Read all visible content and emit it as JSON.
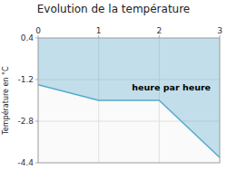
{
  "chart_data": {
    "type": "line",
    "title": "Evolution de la température",
    "y_label": "Température en °C",
    "x": [
      0,
      1,
      2,
      3
    ],
    "values": [
      -1.4,
      -2.0,
      -2.0,
      -4.2
    ],
    "fill_top": 0.4,
    "color": "#55aacc",
    "xlim": [
      0,
      3
    ],
    "ylim": [
      -4.4,
      0.4
    ],
    "xticks": [
      0,
      1,
      2,
      3
    ],
    "yticks": [
      0.4,
      -1.2,
      -2.8,
      -4.4
    ],
    "grid": true,
    "annotations": [
      {
        "text": "heure par heure",
        "x": 1.55,
        "y": -1.3
      }
    ]
  }
}
